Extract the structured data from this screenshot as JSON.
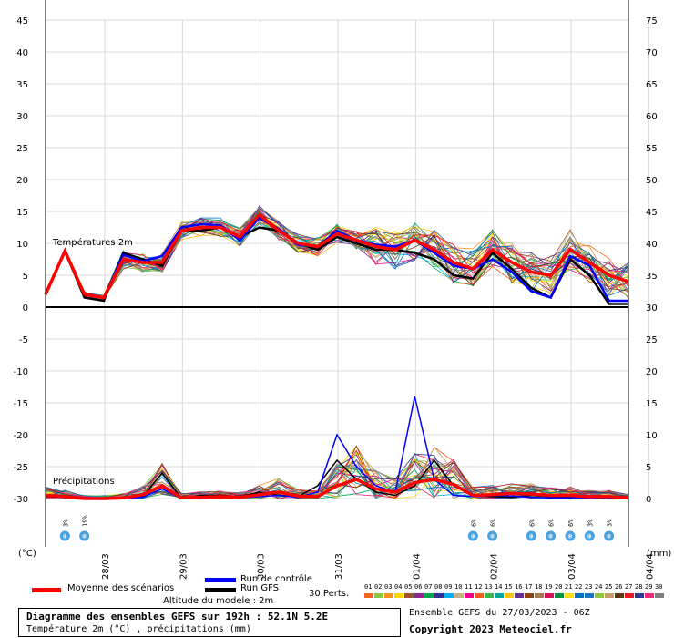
{
  "chart_data": {
    "type": "line",
    "title": "Diagramme des ensembles GEFS sur 192h : 52.1N 5.2E",
    "subtitle": "Température 2m (°C) , précipitations (mm)",
    "left_unit": "(°C)",
    "right_unit": "(mm)",
    "left_ticks": [
      "45",
      "40",
      "35",
      "30",
      "25",
      "20",
      "15",
      "10",
      "5",
      "0",
      "-5",
      "-10",
      "-15",
      "-20",
      "-25",
      "-30"
    ],
    "right_ticks": [
      "75",
      "70",
      "65",
      "60",
      "55",
      "50",
      "45",
      "40",
      "35",
      "30",
      "25",
      "20",
      "15",
      "10",
      "5",
      "0"
    ],
    "dates": [
      "28/03",
      "29/03",
      "30/03",
      "31/03",
      "01/04",
      "02/04",
      "03/04",
      "04/04"
    ],
    "temp_label": "Températures 2m",
    "precip_label": "Précipitations",
    "temp_mean": [
      2,
      8.8,
      2,
      1.5,
      7.5,
      7,
      7,
      12,
      12.5,
      12.5,
      11,
      14.5,
      12,
      10,
      9.5,
      11.5,
      10.5,
      9.5,
      9,
      10.5,
      9,
      7,
      6,
      9,
      7,
      5.5,
      5,
      9,
      7,
      5,
      4
    ],
    "temp_control": [
      2,
      8.8,
      2,
      1.5,
      8.2,
      7.2,
      8,
      12.5,
      13,
      12.8,
      10.5,
      14,
      12.3,
      9.8,
      9.5,
      12,
      10.5,
      9.8,
      9.5,
      10.5,
      8.5,
      6.5,
      6,
      7.5,
      5.5,
      2.5,
      1.5,
      8,
      6.5,
      1,
      1
    ],
    "temp_gfs": [
      2,
      8.8,
      1.5,
      1,
      8.5,
      7.5,
      6.5,
      12,
      12,
      12.5,
      11,
      12.5,
      12,
      10,
      9,
      11,
      10,
      9,
      9,
      8.5,
      7.5,
      5,
      4.5,
      8.5,
      6,
      3,
      1.5,
      7.5,
      5,
      0.5,
      0.5
    ],
    "precip_mean": [
      0.5,
      0.3,
      0,
      0,
      0.1,
      0.6,
      2,
      0.1,
      0.2,
      0.3,
      0.2,
      0.6,
      1,
      0.4,
      0.3,
      2,
      3,
      1.5,
      1,
      2.5,
      3,
      2.2,
      0.5,
      0.6,
      0.8,
      0.7,
      0.5,
      0.5,
      0.3,
      0.3,
      0.1
    ],
    "precip_control": [
      0.5,
      0.4,
      0,
      0,
      0,
      0.2,
      1.5,
      0,
      0,
      0.2,
      0.1,
      0.3,
      0.5,
      0.2,
      1,
      10,
      5,
      2,
      1,
      16,
      3,
      0.5,
      0.3,
      0.5,
      0.4,
      0.2,
      0.1,
      0.1,
      0.1,
      0,
      0
    ],
    "precip_gfs": [
      0.3,
      0.2,
      0,
      0,
      0,
      0.3,
      4,
      0,
      0.5,
      0.5,
      0.3,
      1,
      0.5,
      0.3,
      2,
      6,
      3,
      1,
      0.5,
      2,
      6,
      2,
      0.4,
      0.3,
      0.2,
      0.5,
      0.3,
      0.2,
      0.1,
      0,
      0
    ],
    "snow_markers": [
      {
        "step": 1,
        "text": "3%"
      },
      {
        "step": 2,
        "text": "19%"
      },
      {
        "step": 22,
        "text": "6%"
      },
      {
        "step": 23,
        "text": "6%"
      },
      {
        "step": 25,
        "text": "6%"
      },
      {
        "step": 26,
        "text": "6%"
      },
      {
        "step": 27,
        "text": "6%"
      },
      {
        "step": 28,
        "text": "3%"
      },
      {
        "step": 29,
        "text": "3%"
      }
    ]
  },
  "legend": {
    "mean": "Moyenne des scénarios",
    "control": "Run de contrôle",
    "gfs": "Run GFS",
    "perts": "30 Perts.",
    "pert_numbers": [
      "01",
      "02",
      "03",
      "04",
      "05",
      "06",
      "07",
      "08",
      "09",
      "10",
      "11",
      "12",
      "13",
      "14",
      "15",
      "16",
      "17",
      "18",
      "19",
      "20",
      "21",
      "22",
      "23",
      "24",
      "25",
      "26",
      "27",
      "28",
      "29",
      "30"
    ],
    "pert_colors": [
      "#f26522",
      "#8dc63f",
      "#f7941d",
      "#ffd700",
      "#a0522d",
      "#92278f",
      "#00a651",
      "#2e3192",
      "#00aeef",
      "#c2b280",
      "#ec008c",
      "#f15a24",
      "#39b54a",
      "#00a99d",
      "#ffc20e",
      "#662d91",
      "#8b4513",
      "#a67c52",
      "#d4145a",
      "#009245",
      "#ffde17",
      "#0072bc",
      "#1b75bc",
      "#8cc63f",
      "#c69c6d",
      "#603813",
      "#ed1c24",
      "#2b3990",
      "#ee2a7b",
      "#808080"
    ],
    "altitude": "Altitude du modele : 2m"
  },
  "info": {
    "ensemble": "Ensemble GEFS du 27/03/2023 - 06Z",
    "copyright": "Copyright 2023 Meteociel.fr"
  },
  "colors": {
    "mean": "#ff0000",
    "control": "#0000ff",
    "gfs": "#000000",
    "snow": "#4aa3e0"
  }
}
